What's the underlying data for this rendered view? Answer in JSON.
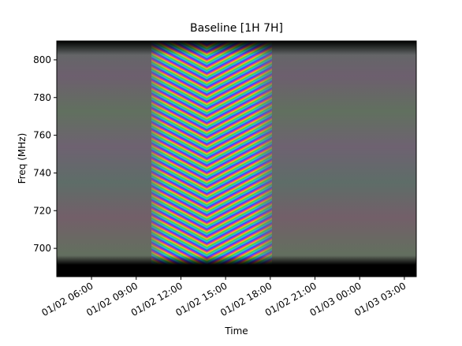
{
  "chart_data": {
    "type": "heatmap",
    "title": "Baseline [1H 7H]",
    "xlabel": "Time",
    "ylabel": "Freq (MHz)",
    "xlim": [
      "01/02 03:40",
      "01/03 03:48"
    ],
    "xticks": [
      "01/02 06:00",
      "01/02 09:00",
      "01/02 12:00",
      "01/02 15:00",
      "01/02 18:00",
      "01/02 21:00",
      "01/03 00:00",
      "01/03 03:00"
    ],
    "ylim": [
      685,
      810
    ],
    "yticks": [
      700,
      720,
      740,
      760,
      780,
      800
    ]
  }
}
